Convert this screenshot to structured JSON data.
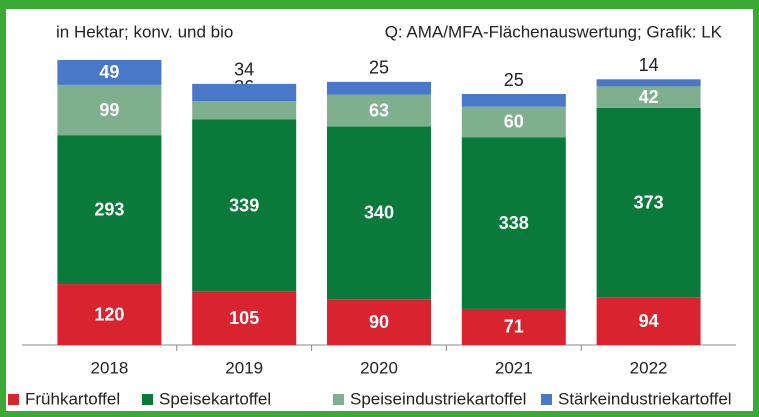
{
  "chart_data": {
    "type": "stacked_bar",
    "subtitle": "in Hektar; konv. und bio",
    "source": "Q: AMA/MFA-Flächenauswertung; Grafik: LK",
    "categories": [
      "2018",
      "2019",
      "2020",
      "2021",
      "2022"
    ],
    "series": [
      {
        "name": "Frühkartoffel",
        "color": "#d9232e",
        "values": [
          120,
          105,
          90,
          71,
          94
        ]
      },
      {
        "name": "Speisekartoffel",
        "color": "#0a7a3a",
        "values": [
          293,
          339,
          340,
          338,
          373
        ]
      },
      {
        "name": "Speiseindustriekartoffel",
        "color": "#7fb08e",
        "values": [
          99,
          36,
          63,
          60,
          42
        ]
      },
      {
        "name": "Stärkeindustriekartoffel",
        "color": "#4a78c8",
        "values": [
          49,
          34,
          25,
          25,
          14
        ]
      }
    ],
    "legend": "bottom"
  }
}
